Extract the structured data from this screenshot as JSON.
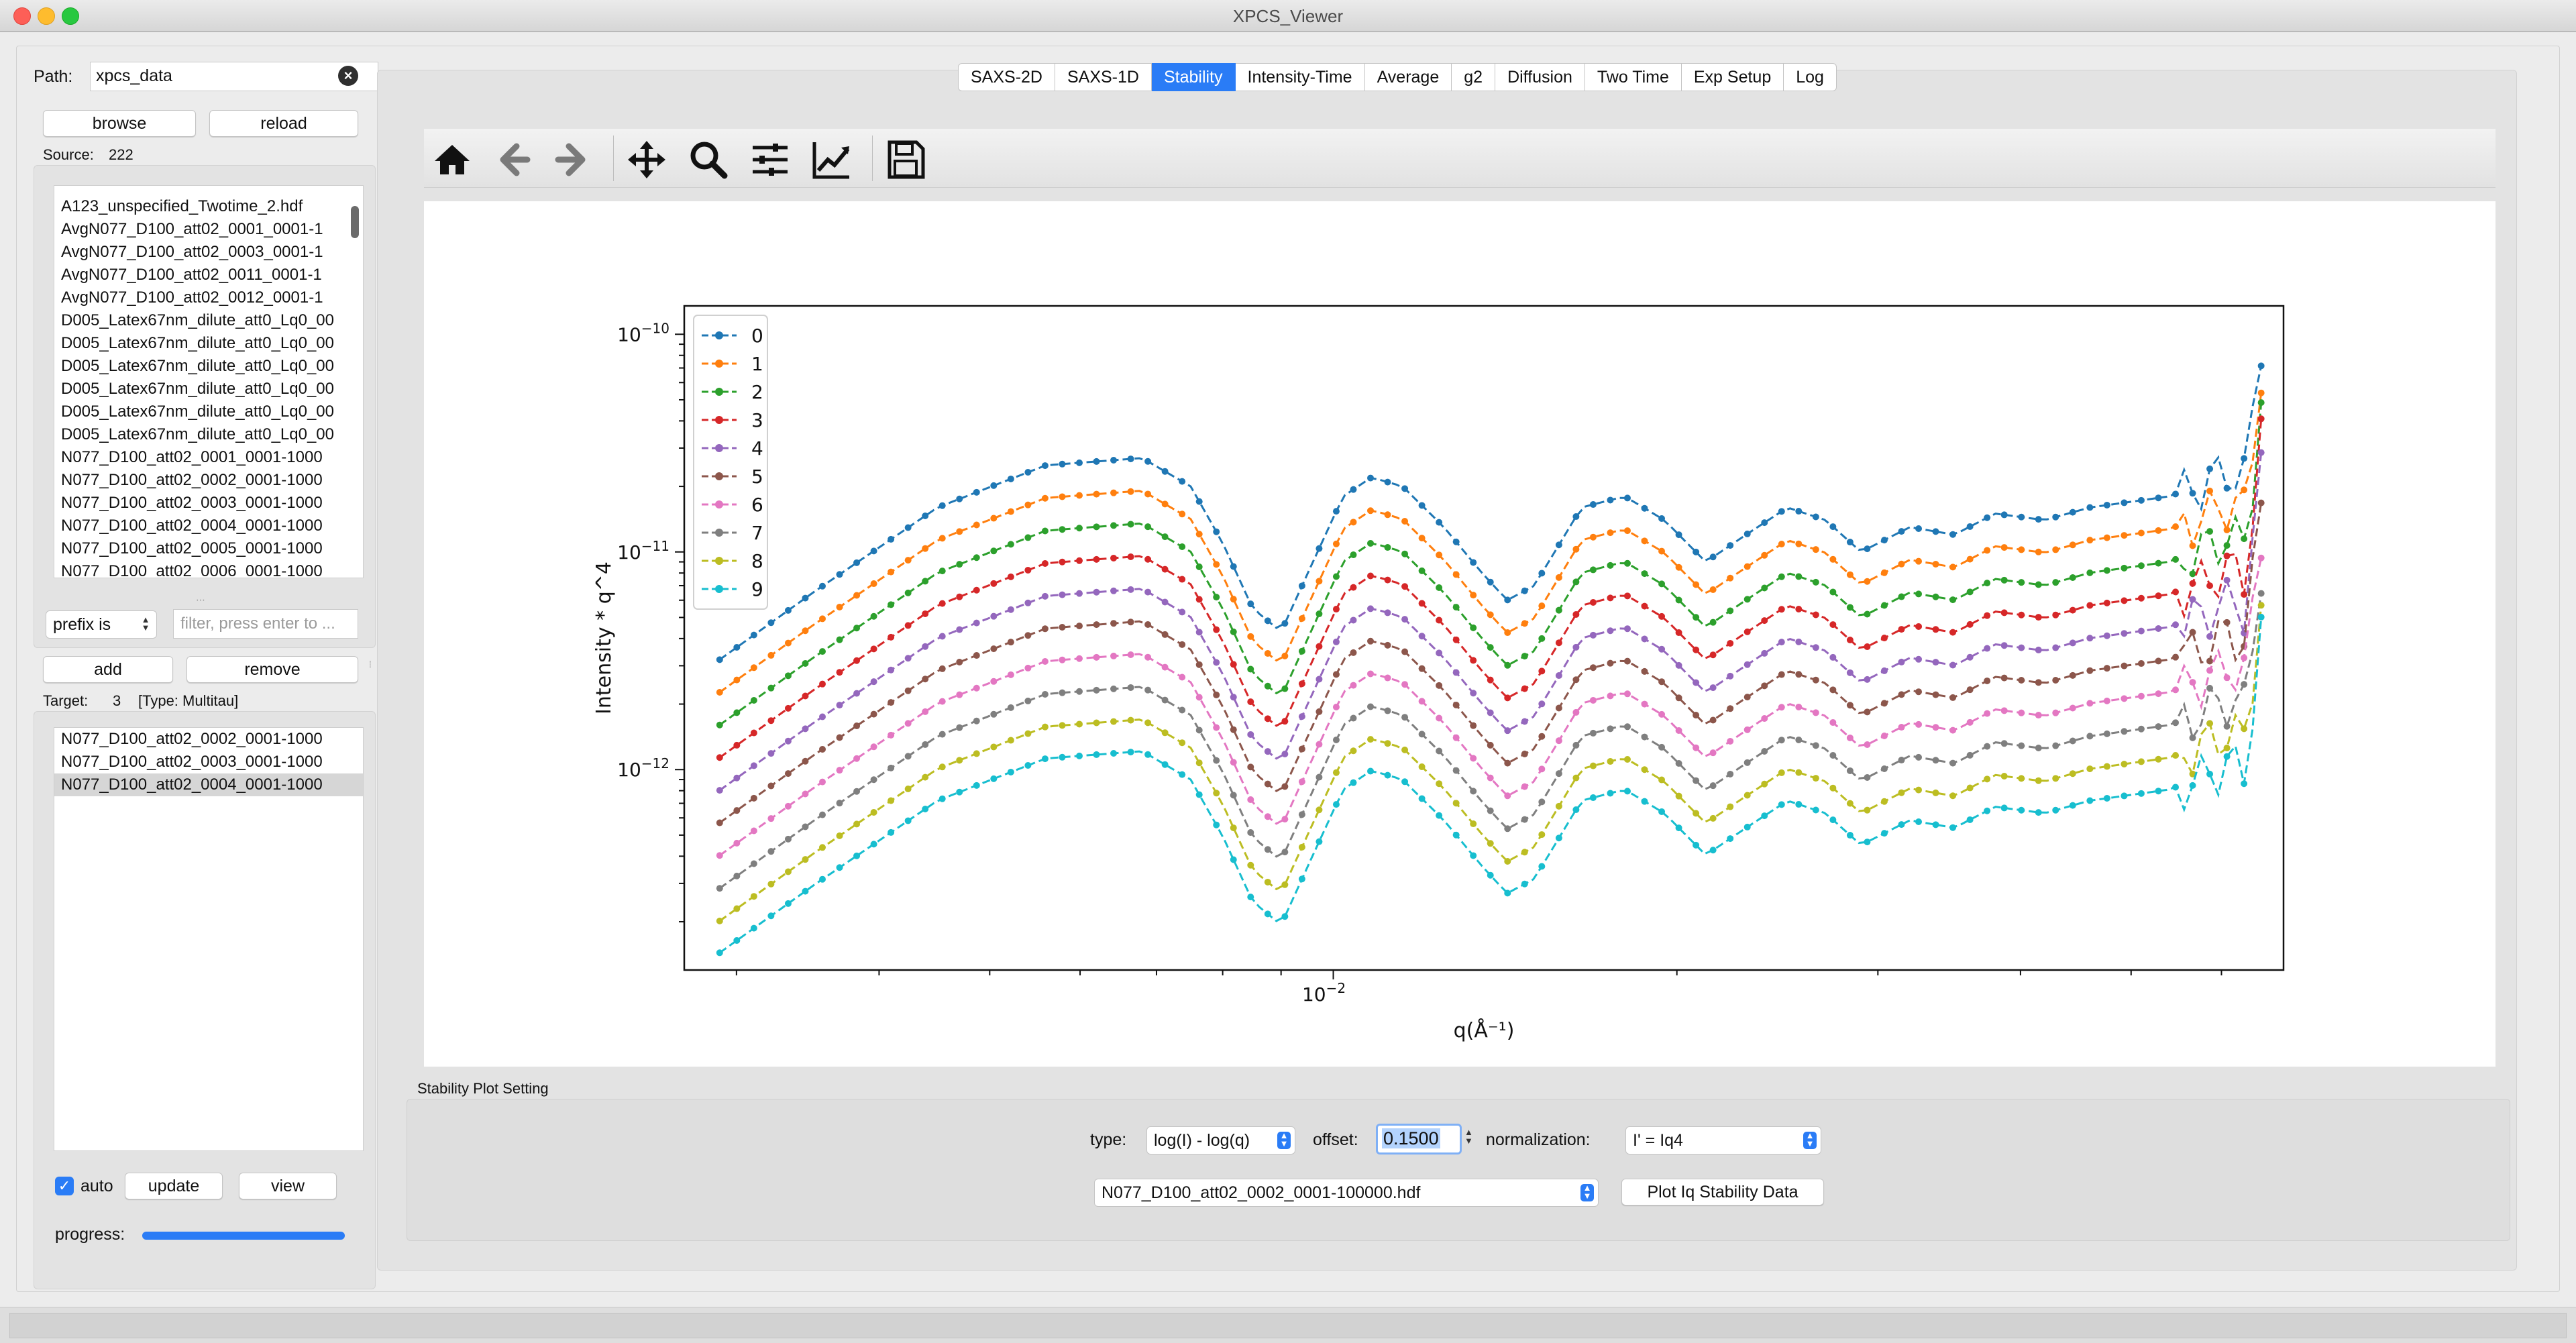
{
  "window": {
    "title": "XPCS_Viewer"
  },
  "left": {
    "path_label": "Path:",
    "path_value": "xpcs_data",
    "browse_label": "browse",
    "reload_label": "reload",
    "source_label": "Source:",
    "source_count": "222",
    "source_files": [
      "A123_unspecified_Twotime_2.hdf",
      "AvgN077_D100_att02_0001_0001-1",
      "AvgN077_D100_att02_0003_0001-1",
      "AvgN077_D100_att02_0011_0001-1",
      "AvgN077_D100_att02_0012_0001-1",
      "D005_Latex67nm_dilute_att0_Lq0_00",
      "D005_Latex67nm_dilute_att0_Lq0_00",
      "D005_Latex67nm_dilute_att0_Lq0_00",
      "D005_Latex67nm_dilute_att0_Lq0_00",
      "D005_Latex67nm_dilute_att0_Lq0_00",
      "D005_Latex67nm_dilute_att0_Lq0_00",
      "N077_D100_att02_0001_0001-1000",
      "N077_D100_att02_0002_0001-1000",
      "N077_D100_att02_0003_0001-1000",
      "N077_D100_att02_0004_0001-1000",
      "N077_D100_att02_0005_0001-1000",
      "N077_D100_att02_0006_0001-1000"
    ],
    "filter_mode": "prefix is",
    "filter_placeholder": "filter, press enter to ...",
    "add_label": "add",
    "remove_label": "remove",
    "target_label": "Target:",
    "target_count": "3",
    "target_type": "[Type: Multitau]",
    "target_files": [
      "N077_D100_att02_0002_0001-1000",
      "N077_D100_att02_0003_0001-1000",
      "N077_D100_att02_0004_0001-1000"
    ],
    "auto_label": "auto",
    "update_label": "update",
    "view_label": "view",
    "progress_label": "progress:",
    "progress_value": 1.0
  },
  "tabs": [
    {
      "label": "SAXS-2D",
      "active": false
    },
    {
      "label": "SAXS-1D",
      "active": false
    },
    {
      "label": "Stability",
      "active": true
    },
    {
      "label": "Intensity-Time",
      "active": false
    },
    {
      "label": "Average",
      "active": false
    },
    {
      "label": "g2",
      "active": false
    },
    {
      "label": "Diffusion",
      "active": false
    },
    {
      "label": "Two Time",
      "active": false
    },
    {
      "label": "Exp Setup",
      "active": false
    },
    {
      "label": "Log",
      "active": false
    }
  ],
  "toolbar_icons": [
    "home-icon",
    "back-arrow-icon",
    "forward-arrow-icon",
    "pan-icon",
    "zoom-icon",
    "subplots-icon",
    "axes-edit-icon",
    "save-icon"
  ],
  "settings": {
    "title": "Stability Plot Setting",
    "type_label": "type:",
    "type_value": "log(I) - log(q)",
    "offset_label": "offset:",
    "offset_value": "0.1500",
    "normalization_label": "normalization:",
    "normalization_value": "I' = Iq4",
    "file_value": "N077_D100_att02_0002_0001-100000.hdf",
    "plot_button_label": "Plot Iq Stability Data"
  },
  "colors": {
    "accent": "#2a7cf6",
    "series": [
      "#1f77b4",
      "#ff7f0e",
      "#2ca02c",
      "#d62728",
      "#9467bd",
      "#8c564b",
      "#e377c2",
      "#7f7f7f",
      "#bcbd22",
      "#17becf"
    ]
  },
  "chart_data": {
    "type": "line",
    "xlabel": "q(Å⁻¹)",
    "ylabel": "Intensity * q^4",
    "xscale": "log",
    "yscale": "log",
    "xlim": [
      0.0027,
      0.068
    ],
    "ylim": [
      1.2e-13,
      1.35e-10
    ],
    "yticks": [
      {
        "value": 1e-10,
        "base": "10",
        "exp": "−10"
      },
      {
        "value": 1e-11,
        "base": "10",
        "exp": "−11"
      },
      {
        "value": 1e-12,
        "base": "10",
        "exp": "−12"
      }
    ],
    "xticks": [
      {
        "value": 0.01,
        "base": "10",
        "exp": "−2"
      }
    ],
    "legend_position": "top-left",
    "series_markers": [
      "circle",
      "triangle-down",
      "triangle-up",
      "triangle-left",
      "triangle-right",
      "square",
      "pentagon",
      "plus",
      "star",
      "hexagon"
    ],
    "base_curve": {
      "q": [
        0.0029,
        0.0035,
        0.0045,
        0.0056,
        0.0068,
        0.0075,
        0.008,
        0.0085,
        0.009,
        0.0095,
        0.0102,
        0.0108,
        0.0115,
        0.0125,
        0.0135,
        0.0142,
        0.015,
        0.0165,
        0.018,
        0.0195,
        0.0212,
        0.023,
        0.025,
        0.027,
        0.029,
        0.032,
        0.035,
        0.038,
        0.042,
        0.046,
        0.05,
        0.054,
        0.057,
        0.061,
        0.063,
        0.065
      ],
      "intensity": [
        3.2e-12,
        6.5e-12,
        1.6e-11,
        2.5e-11,
        2.7e-11,
        2e-11,
        1.1e-11,
        5.5e-12,
        4.3e-12,
        8e-12,
        1.8e-11,
        2.2e-11,
        2e-11,
        1.3e-11,
        8e-12,
        6e-12,
        7e-12,
        1.6e-11,
        1.8e-11,
        1.4e-11,
        9e-12,
        1.2e-11,
        1.6e-11,
        1.4e-11,
        1e-11,
        1.3e-11,
        1.2e-11,
        1.5e-11,
        1.4e-11,
        1.6e-11,
        1.7e-11,
        1.8e-11,
        2e-11,
        2.4e-11,
        2.2e-11,
        9.4e-11
      ]
    },
    "series": [
      {
        "name": "0",
        "scale": 1.0
      },
      {
        "name": "1",
        "scale": 0.708
      },
      {
        "name": "2",
        "scale": 0.501
      },
      {
        "name": "3",
        "scale": 0.355
      },
      {
        "name": "4",
        "scale": 0.251
      },
      {
        "name": "5",
        "scale": 0.178
      },
      {
        "name": "6",
        "scale": 0.126
      },
      {
        "name": "7",
        "scale": 0.089
      },
      {
        "name": "8",
        "scale": 0.063
      },
      {
        "name": "9",
        "scale": 0.045
      }
    ]
  }
}
